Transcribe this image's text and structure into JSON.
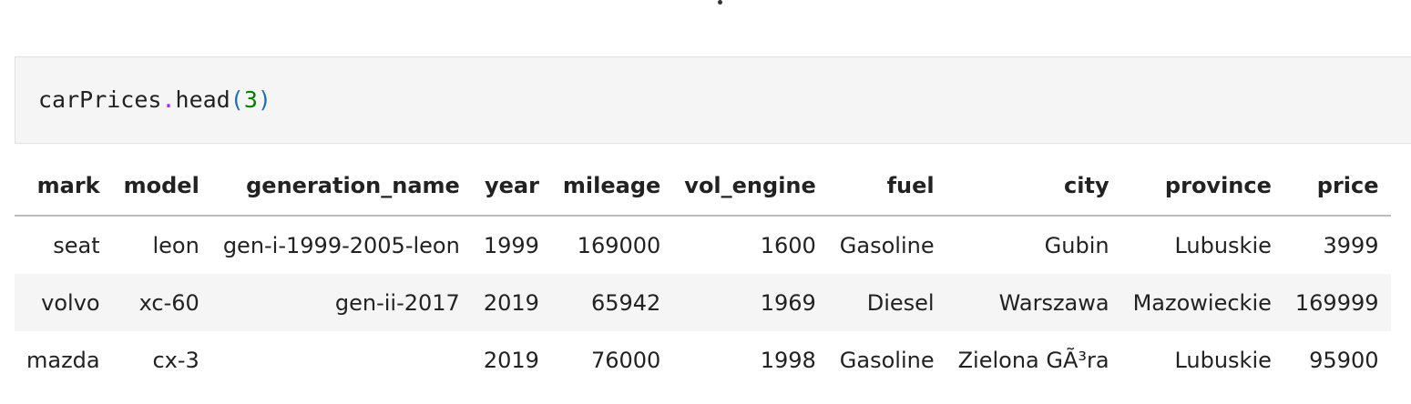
{
  "code_cell": {
    "object": "carPrices",
    "dot": ".",
    "method": "head",
    "open_paren": "(",
    "argument": "3",
    "close_paren": ")"
  },
  "table": {
    "columns": [
      "mark",
      "model",
      "generation_name",
      "year",
      "mileage",
      "vol_engine",
      "fuel",
      "city",
      "province",
      "price"
    ],
    "rows": [
      [
        "seat",
        "leon",
        "gen-i-1999-2005-leon",
        "1999",
        "169000",
        "1600",
        "Gasoline",
        "Gubin",
        "Lubuskie",
        "3999"
      ],
      [
        "volvo",
        "xc-60",
        "gen-ii-2017",
        "2019",
        "65942",
        "1969",
        "Diesel",
        "Warszawa",
        "Mazowieckie",
        "169999"
      ],
      [
        "mazda",
        "cx-3",
        "",
        "2019",
        "76000",
        "1998",
        "Gasoline",
        "Zielona GÃ³ra",
        "Lubuskie",
        "95900"
      ]
    ]
  }
}
